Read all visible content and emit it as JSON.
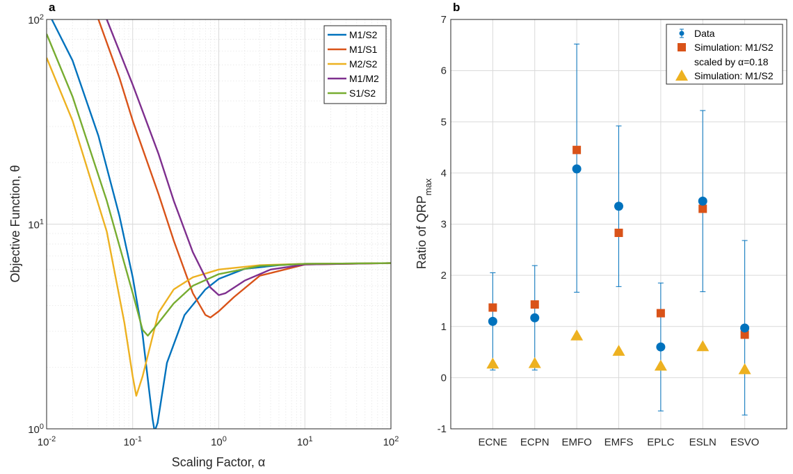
{
  "chart_data": [
    {
      "type": "line",
      "panel_label": "a",
      "xlabel": "Scaling Factor, α",
      "ylabel": "Objective Function, θ",
      "xscale": "log",
      "yscale": "log",
      "xlim": [
        0.01,
        100
      ],
      "ylim": [
        1,
        100
      ],
      "xticks": [
        "10^-2",
        "10^-1",
        "10^0",
        "10^1",
        "10^2"
      ],
      "yticks": [
        "10^0",
        "10^1",
        "10^2"
      ],
      "grid": true,
      "minor_grid": true,
      "legend_position": "top-right",
      "series": [
        {
          "name": "M1/S2",
          "color": "#0072BD",
          "x": [
            0.0115,
            0.02,
            0.04,
            0.07,
            0.1,
            0.13,
            0.155,
            0.17,
            0.18,
            0.195,
            0.25,
            0.4,
            0.7,
            1,
            2,
            5,
            10,
            100
          ],
          "y": [
            100,
            63,
            27,
            11,
            5.5,
            2.9,
            1.55,
            1.12,
            0.97,
            1.07,
            2.1,
            3.6,
            4.8,
            5.4,
            6.05,
            6.3,
            6.4,
            6.45
          ]
        },
        {
          "name": "M1/S1",
          "color": "#D95319",
          "x": [
            0.04,
            0.07,
            0.1,
            0.2,
            0.3,
            0.5,
            0.7,
            0.8,
            1,
            1.5,
            3,
            10,
            100
          ],
          "y": [
            100,
            52,
            32,
            14,
            8.3,
            4.6,
            3.6,
            3.5,
            3.75,
            4.4,
            5.6,
            6.35,
            6.45
          ]
        },
        {
          "name": "M2/S2",
          "color": "#EDB120",
          "x": [
            0.01,
            0.02,
            0.05,
            0.08,
            0.1,
            0.11,
            0.13,
            0.2,
            0.3,
            0.5,
            1,
            3,
            10,
            100
          ],
          "y": [
            65,
            32,
            9.2,
            3.3,
            1.8,
            1.45,
            1.8,
            3.7,
            4.8,
            5.5,
            6.0,
            6.3,
            6.4,
            6.45
          ]
        },
        {
          "name": "M1/M2",
          "color": "#7E2F8E",
          "x": [
            0.05,
            0.1,
            0.2,
            0.3,
            0.5,
            0.8,
            1,
            1.2,
            2,
            4,
            10,
            100
          ],
          "y": [
            100,
            48,
            22,
            13,
            7.3,
            4.9,
            4.5,
            4.6,
            5.3,
            6.0,
            6.35,
            6.45
          ]
        },
        {
          "name": "S1/S2",
          "color": "#77AC30",
          "x": [
            0.01,
            0.02,
            0.05,
            0.1,
            0.13,
            0.15,
            0.2,
            0.3,
            0.5,
            1,
            3,
            10,
            100
          ],
          "y": [
            85,
            42,
            13,
            4.6,
            3.05,
            2.85,
            3.3,
            4.1,
            5.0,
            5.7,
            6.25,
            6.4,
            6.45
          ]
        }
      ]
    },
    {
      "type": "scatter",
      "panel_label": "b",
      "xlabel": "",
      "ylabel": "Ratio of QRP",
      "ylabel_sub": "max",
      "ylim": [
        -1,
        7
      ],
      "yticks": [
        "-1",
        "0",
        "1",
        "2",
        "3",
        "4",
        "5",
        "6",
        "7"
      ],
      "categories": [
        "ECNE",
        "ECPN",
        "EMFO",
        "EMFS",
        "EPLC",
        "ESLN",
        "ESVO"
      ],
      "grid": true,
      "legend_position": "top-right",
      "legend": {
        "data_label": "Data",
        "sim_label_line1": "Simulation: M1/S2",
        "sim_label_line2": "scaled by α=0.18",
        "sim2_label": "Simulation: M1/S2"
      },
      "series": [
        {
          "name": "Data",
          "marker": "circle",
          "color": "#0072BD",
          "values": [
            1.1,
            1.17,
            4.08,
            3.35,
            0.6,
            3.45,
            0.97
          ],
          "err_low": [
            0.15,
            0.15,
            1.67,
            1.78,
            -0.65,
            1.68,
            -0.73
          ],
          "err_high": [
            2.05,
            2.19,
            6.52,
            4.92,
            1.85,
            5.22,
            2.68
          ]
        },
        {
          "name": "Simulation: M1/S2 scaled by α=0.18",
          "marker": "square",
          "color": "#D95319",
          "values": [
            1.37,
            1.43,
            4.45,
            2.83,
            1.26,
            3.3,
            0.84
          ]
        },
        {
          "name": "Simulation: M1/S2",
          "marker": "triangle",
          "color": "#EDB120",
          "values": [
            0.27,
            0.28,
            0.82,
            0.52,
            0.23,
            0.61,
            0.16
          ]
        }
      ]
    }
  ]
}
